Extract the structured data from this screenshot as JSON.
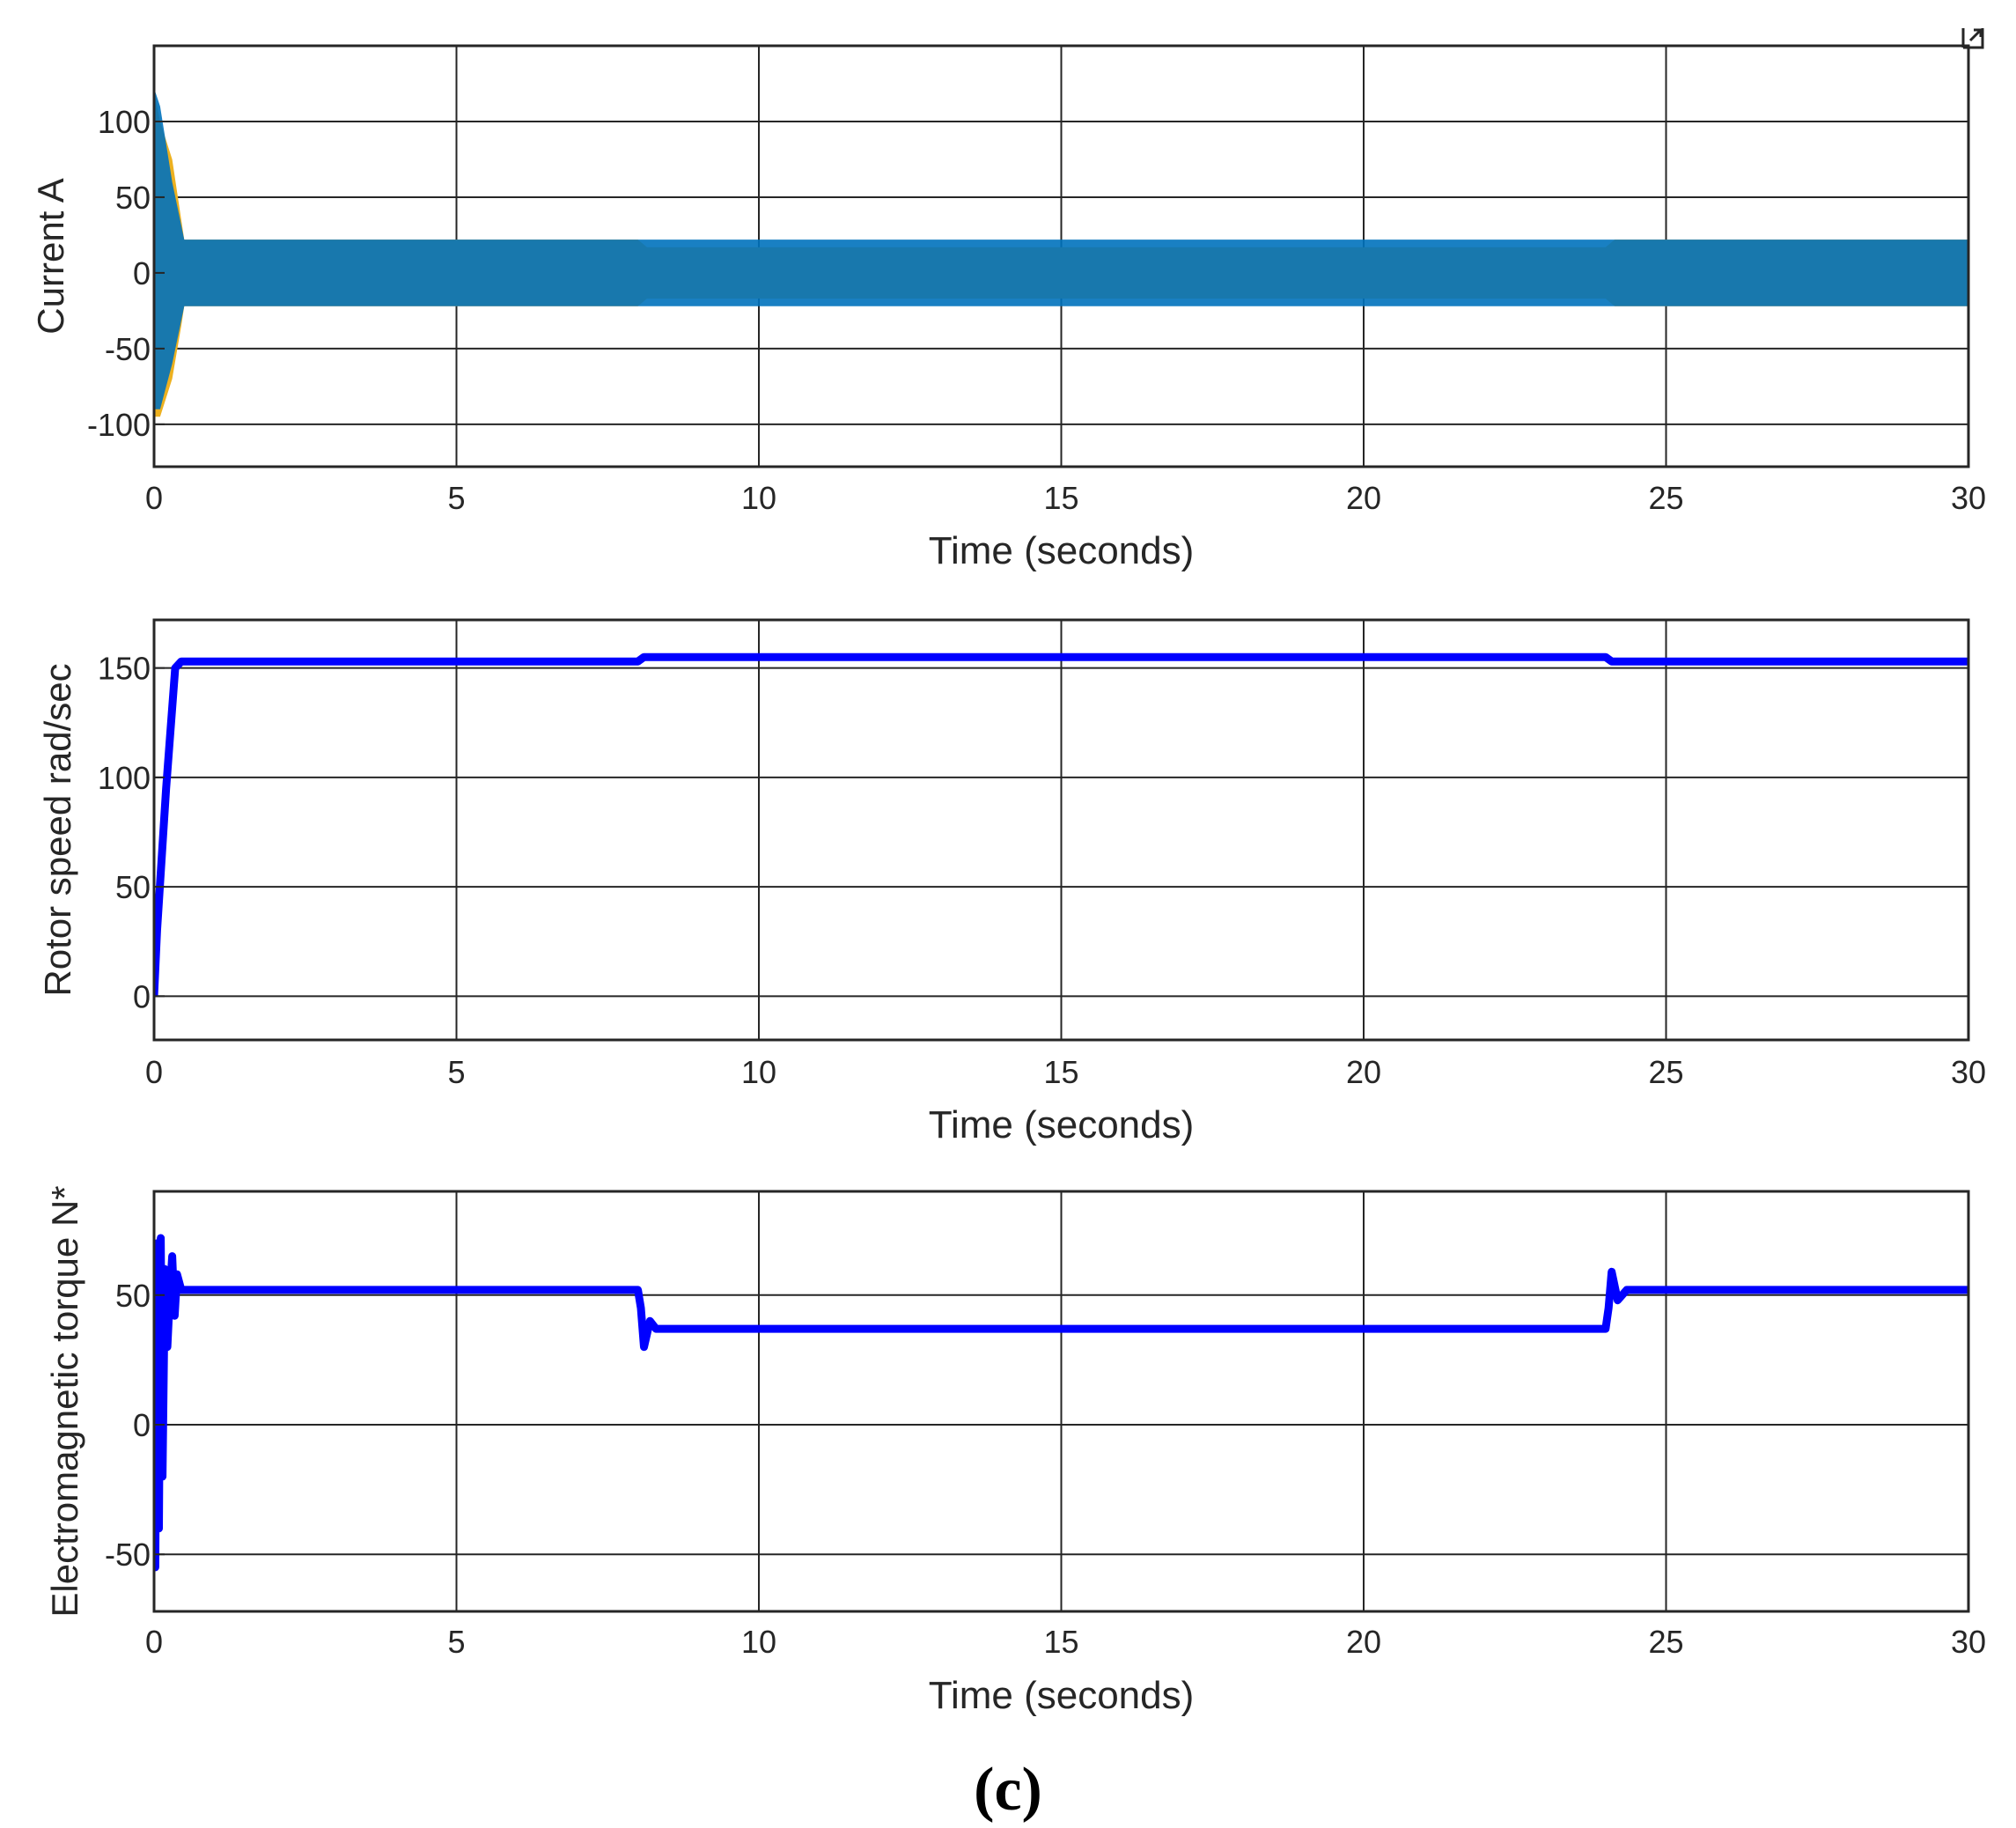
{
  "caption": "(c)",
  "corner_glyph": "undock-icon",
  "chart_data": [
    {
      "type": "line",
      "xlabel": "Time (seconds)",
      "ylabel": "Current A",
      "xlim": [
        0,
        30
      ],
      "ylim": [
        -128,
        150
      ],
      "xticks": [
        0,
        5,
        10,
        15,
        20,
        25,
        30
      ],
      "yticks": [
        -100,
        -50,
        0,
        50,
        100
      ],
      "ytick_labels": [
        "-100",
        "-50",
        "0",
        "50",
        "100"
      ],
      "grid": true,
      "series": [
        {
          "style": "oscillation-band",
          "color": "#EDB120",
          "lower": [
            [
              0,
              -95
            ],
            [
              0.1,
              -95
            ],
            [
              0.3,
              -70
            ],
            [
              0.45,
              -35
            ],
            [
              0.5,
              -22
            ],
            [
              8,
              -22
            ],
            [
              8.15,
              -17
            ],
            [
              24,
              -17
            ],
            [
              24.15,
              -22
            ],
            [
              30,
              -22
            ]
          ],
          "upper": [
            [
              0,
              120
            ],
            [
              0.1,
              100
            ],
            [
              0.3,
              75
            ],
            [
              0.45,
              35
            ],
            [
              0.5,
              22
            ],
            [
              8,
              22
            ],
            [
              8.15,
              17
            ],
            [
              24,
              17
            ],
            [
              24.15,
              22
            ],
            [
              30,
              22
            ]
          ]
        },
        {
          "style": "oscillation-band",
          "color": "#0072BD",
          "lower": [
            [
              0,
              -90
            ],
            [
              0.1,
              -90
            ],
            [
              0.3,
              -60
            ],
            [
              0.5,
              -22
            ],
            [
              30,
              -22
            ]
          ],
          "upper": [
            [
              0,
              122
            ],
            [
              0.1,
              110
            ],
            [
              0.3,
              60
            ],
            [
              0.5,
              22
            ],
            [
              30,
              22
            ]
          ]
        }
      ]
    },
    {
      "type": "line",
      "xlabel": "Time (seconds)",
      "ylabel": "Rotor speed rad/sec",
      "xlim": [
        0,
        30
      ],
      "ylim": [
        -20,
        172
      ],
      "xticks": [
        0,
        5,
        10,
        15,
        20,
        25,
        30
      ],
      "yticks": [
        0,
        50,
        100,
        150
      ],
      "ytick_labels": [
        "0",
        "50",
        "100",
        "150"
      ],
      "grid": true,
      "series": [
        {
          "color": "#0000FF",
          "points": [
            [
              0,
              0
            ],
            [
              0.05,
              30
            ],
            [
              0.2,
              95
            ],
            [
              0.35,
              150
            ],
            [
              0.45,
              153
            ],
            [
              8,
              153
            ],
            [
              8.1,
              155
            ],
            [
              24,
              155
            ],
            [
              24.1,
              153
            ],
            [
              30,
              153
            ]
          ]
        }
      ]
    },
    {
      "type": "line",
      "xlabel": "Time (seconds)",
      "ylabel": "Electromagnetic torque N*",
      "xlim": [
        0,
        30
      ],
      "ylim": [
        -72,
        90
      ],
      "xticks": [
        0,
        5,
        10,
        15,
        20,
        25,
        30
      ],
      "yticks": [
        -50,
        0,
        50
      ],
      "ytick_labels": [
        "-50",
        "0",
        "50"
      ],
      "grid": true,
      "series": [
        {
          "color": "#0000FF",
          "points": [
            [
              0,
              0
            ],
            [
              0.02,
              -55
            ],
            [
              0.05,
              70
            ],
            [
              0.08,
              -40
            ],
            [
              0.11,
              72
            ],
            [
              0.14,
              -20
            ],
            [
              0.18,
              60
            ],
            [
              0.22,
              30
            ],
            [
              0.26,
              50
            ],
            [
              0.3,
              65
            ],
            [
              0.34,
              42
            ],
            [
              0.38,
              58
            ],
            [
              0.45,
              52
            ],
            [
              8,
              52
            ],
            [
              8.05,
              45
            ],
            [
              8.1,
              30
            ],
            [
              8.2,
              40
            ],
            [
              8.3,
              37
            ],
            [
              24,
              37
            ],
            [
              24.05,
              45
            ],
            [
              24.1,
              59
            ],
            [
              24.2,
              48
            ],
            [
              24.35,
              52
            ],
            [
              30,
              52
            ]
          ]
        }
      ]
    }
  ]
}
